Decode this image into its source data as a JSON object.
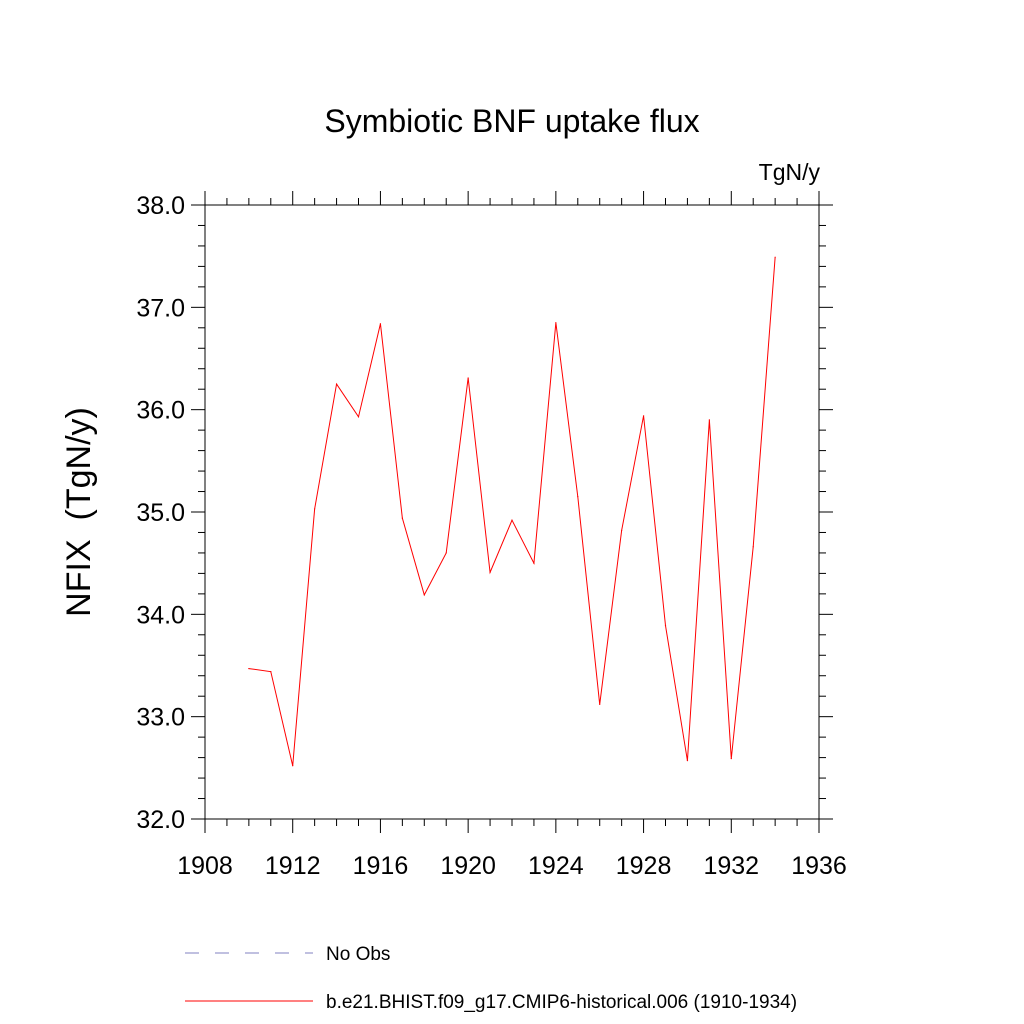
{
  "chart_data": {
    "type": "line",
    "title": "Symbiotic BNF uptake flux",
    "units_label": "TgN/y",
    "ylabel": "NFIX  (TgN/y)",
    "xlabel": "",
    "xlim": [
      1908,
      1936
    ],
    "ylim": [
      32.0,
      38.0
    ],
    "x_ticks": [
      1908,
      1912,
      1916,
      1920,
      1924,
      1928,
      1932,
      1936
    ],
    "x_tick_labels": [
      "1908",
      "1912",
      "1916",
      "1920",
      "1924",
      "1928",
      "1932",
      "1936"
    ],
    "y_ticks": [
      32.0,
      33.0,
      34.0,
      35.0,
      36.0,
      37.0,
      38.0
    ],
    "y_tick_labels": [
      "32.0",
      "33.0",
      "34.0",
      "35.0",
      "36.0",
      "37.0",
      "38.0"
    ],
    "grid": false,
    "legend_position": "bottom",
    "series": [
      {
        "name": "b.e21.BHIST.f09_g17.CMIP6-historical.006 (1910-1934)",
        "color": "#ff0000",
        "style": "solid",
        "x": [
          1910,
          1911,
          1912,
          1913,
          1914,
          1915,
          1916,
          1917,
          1918,
          1919,
          1920,
          1921,
          1922,
          1923,
          1924,
          1925,
          1926,
          1927,
          1928,
          1929,
          1930,
          1931,
          1932,
          1933,
          1934
        ],
        "values": [
          33.47,
          33.44,
          32.52,
          35.03,
          36.25,
          35.93,
          36.84,
          34.94,
          34.19,
          34.6,
          36.31,
          34.41,
          34.92,
          34.5,
          36.85,
          35.15,
          33.12,
          34.82,
          35.94,
          33.89,
          32.57,
          35.9,
          32.59,
          34.66,
          37.49
        ]
      }
    ],
    "legend": [
      {
        "label": "No Obs",
        "color": "#8080c0",
        "style": "dashed"
      },
      {
        "label": "b.e21.BHIST.f09_g17.CMIP6-historical.006 (1910-1934)",
        "color": "#ff0000",
        "style": "solid"
      }
    ]
  }
}
